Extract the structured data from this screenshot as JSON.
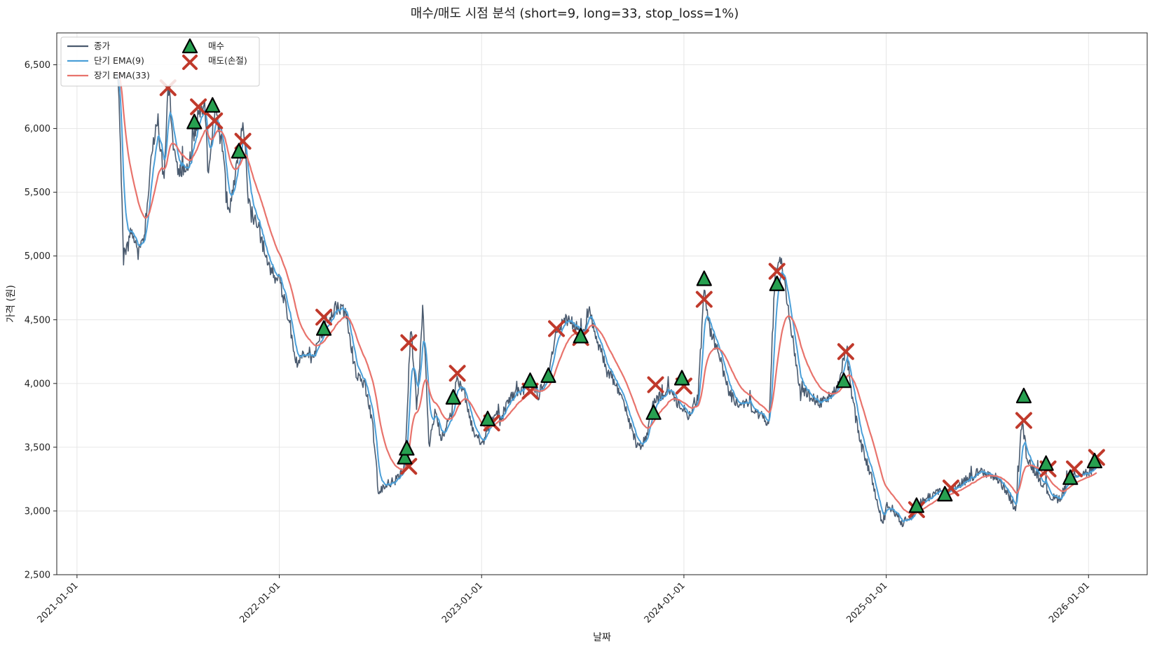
{
  "chart_data": {
    "type": "line",
    "title": "매수/매도 시점 분석 (short=9, long=33, stop_loss=1%)",
    "xlabel": "날짜",
    "ylabel": "가격 (원)",
    "ylim": [
      2500,
      6750
    ],
    "yticks": [
      2500,
      3000,
      3500,
      4000,
      4500,
      5000,
      5500,
      6000,
      6500
    ],
    "ytick_labels": [
      "2,500",
      "3,000",
      "3,500",
      "4,000",
      "4,500",
      "5,000",
      "5,500",
      "6,000",
      "6,500"
    ],
    "xlim": [
      2020.9,
      2026.29
    ],
    "xticks": [
      2021,
      2022,
      2023,
      2024,
      2025,
      2026
    ],
    "xtick_labels": [
      "2021-01-01",
      "2022-01-01",
      "2023-01-01",
      "2024-01-01",
      "2025-01-01",
      "2026-01-01"
    ],
    "grid": true,
    "legend_position": "top-left",
    "colors": {
      "close": "#4a5a6e",
      "ema_short": "#4b9fd8",
      "ema_long": "#e8736c",
      "buy_fill": "#27a050",
      "buy_edge": "#000000",
      "sell": "#c0392b",
      "grid": "#e6e6e6"
    },
    "legend": [
      {
        "key": "close",
        "label": "종가",
        "marker": "line"
      },
      {
        "key": "ema_short",
        "label": "단기 EMA(9)",
        "marker": "line"
      },
      {
        "key": "ema_long",
        "label": "장기 EMA(33)",
        "marker": "line"
      },
      {
        "key": "buy",
        "label": "매수",
        "marker": "triangle"
      },
      {
        "key": "sell",
        "label": "매도(손절)",
        "marker": "cross"
      }
    ],
    "anchors": [
      [
        2021.2,
        6400
      ],
      [
        2021.21,
        6100
      ],
      [
        2021.23,
        4950
      ],
      [
        2021.27,
        5200
      ],
      [
        2021.3,
        5000
      ],
      [
        2021.33,
        5100
      ],
      [
        2021.37,
        5850
      ],
      [
        2021.4,
        6050
      ],
      [
        2021.43,
        5600
      ],
      [
        2021.45,
        6380
      ],
      [
        2021.48,
        5800
      ],
      [
        2021.5,
        5650
      ],
      [
        2021.55,
        5700
      ],
      [
        2021.6,
        6100
      ],
      [
        2021.63,
        6200
      ],
      [
        2021.65,
        5600
      ],
      [
        2021.68,
        6150
      ],
      [
        2021.72,
        5850
      ],
      [
        2021.75,
        5300
      ],
      [
        2021.78,
        5600
      ],
      [
        2021.82,
        6050
      ],
      [
        2021.85,
        5400
      ],
      [
        2021.9,
        5200
      ],
      [
        2021.95,
        4900
      ],
      [
        2022.0,
        4800
      ],
      [
        2022.05,
        4500
      ],
      [
        2022.08,
        4150
      ],
      [
        2022.12,
        4250
      ],
      [
        2022.18,
        4250
      ],
      [
        2022.22,
        4450
      ],
      [
        2022.28,
        4600
      ],
      [
        2022.33,
        4550
      ],
      [
        2022.38,
        4050
      ],
      [
        2022.42,
        4000
      ],
      [
        2022.46,
        3700
      ],
      [
        2022.49,
        3150
      ],
      [
        2022.53,
        3200
      ],
      [
        2022.58,
        3250
      ],
      [
        2022.62,
        3350
      ],
      [
        2022.65,
        4450
      ],
      [
        2022.68,
        3800
      ],
      [
        2022.71,
        4600
      ],
      [
        2022.74,
        3500
      ],
      [
        2022.77,
        3800
      ],
      [
        2022.8,
        3550
      ],
      [
        2022.85,
        3750
      ],
      [
        2022.88,
        4050
      ],
      [
        2022.92,
        3900
      ],
      [
        2022.96,
        3600
      ],
      [
        2023.0,
        3500
      ],
      [
        2023.04,
        3700
      ],
      [
        2023.1,
        3750
      ],
      [
        2023.15,
        3900
      ],
      [
        2023.2,
        3950
      ],
      [
        2023.25,
        4000
      ],
      [
        2023.28,
        3900
      ],
      [
        2023.33,
        4100
      ],
      [
        2023.37,
        4400
      ],
      [
        2023.42,
        4500
      ],
      [
        2023.47,
        4450
      ],
      [
        2023.5,
        4350
      ],
      [
        2023.53,
        4600
      ],
      [
        2023.57,
        4350
      ],
      [
        2023.62,
        4100
      ],
      [
        2023.68,
        3950
      ],
      [
        2023.72,
        3750
      ],
      [
        2023.77,
        3500
      ],
      [
        2023.81,
        3550
      ],
      [
        2023.84,
        3800
      ],
      [
        2023.88,
        3900
      ],
      [
        2023.92,
        3950
      ],
      [
        2023.97,
        3850
      ],
      [
        2024.02,
        3750
      ],
      [
        2024.07,
        3900
      ],
      [
        2024.1,
        4750
      ],
      [
        2024.13,
        4400
      ],
      [
        2024.17,
        4250
      ],
      [
        2024.22,
        3950
      ],
      [
        2024.27,
        3800
      ],
      [
        2024.32,
        3850
      ],
      [
        2024.37,
        3750
      ],
      [
        2024.42,
        3700
      ],
      [
        2024.45,
        4850
      ],
      [
        2024.48,
        4950
      ],
      [
        2024.52,
        4550
      ],
      [
        2024.57,
        4000
      ],
      [
        2024.62,
        3900
      ],
      [
        2024.67,
        3850
      ],
      [
        2024.72,
        3900
      ],
      [
        2024.77,
        4000
      ],
      [
        2024.8,
        4300
      ],
      [
        2024.83,
        3900
      ],
      [
        2024.87,
        3550
      ],
      [
        2024.9,
        3400
      ],
      [
        2024.93,
        3250
      ],
      [
        2024.95,
        3100
      ],
      [
        2024.98,
        2900
      ],
      [
        2025.0,
        3050
      ],
      [
        2025.04,
        3000
      ],
      [
        2025.08,
        2900
      ],
      [
        2025.12,
        2950
      ],
      [
        2025.16,
        3050
      ],
      [
        2025.2,
        3100
      ],
      [
        2025.25,
        3150
      ],
      [
        2025.3,
        3150
      ],
      [
        2025.35,
        3200
      ],
      [
        2025.4,
        3250
      ],
      [
        2025.45,
        3300
      ],
      [
        2025.5,
        3300
      ],
      [
        2025.55,
        3250
      ],
      [
        2025.6,
        3150
      ],
      [
        2025.64,
        3000
      ],
      [
        2025.67,
        3700
      ],
      [
        2025.7,
        3400
      ],
      [
        2025.74,
        3300
      ],
      [
        2025.78,
        3200
      ],
      [
        2025.82,
        3100
      ],
      [
        2025.86,
        3100
      ],
      [
        2025.9,
        3250
      ],
      [
        2025.95,
        3300
      ],
      [
        2026.0,
        3300
      ],
      [
        2026.04,
        3350
      ]
    ],
    "buy_signals": [
      [
        2021.58,
        6050
      ],
      [
        2021.67,
        6180
      ],
      [
        2021.8,
        5820
      ],
      [
        2022.22,
        4430
      ],
      [
        2022.62,
        3420
      ],
      [
        2022.63,
        3490
      ],
      [
        2022.86,
        3890
      ],
      [
        2023.03,
        3720
      ],
      [
        2023.24,
        4020
      ],
      [
        2023.33,
        4060
      ],
      [
        2023.49,
        4370
      ],
      [
        2023.85,
        3770
      ],
      [
        2023.99,
        4040
      ],
      [
        2024.1,
        4820
      ],
      [
        2024.46,
        4780
      ],
      [
        2024.79,
        4020
      ],
      [
        2025.15,
        3040
      ],
      [
        2025.29,
        3130
      ],
      [
        2025.68,
        3900
      ],
      [
        2025.79,
        3370
      ],
      [
        2025.91,
        3260
      ],
      [
        2026.03,
        3390
      ]
    ],
    "sell_signals": [
      [
        2021.45,
        6320
      ],
      [
        2021.6,
        6170
      ],
      [
        2021.68,
        6060
      ],
      [
        2021.82,
        5900
      ],
      [
        2022.22,
        4520
      ],
      [
        2022.64,
        4320
      ],
      [
        2022.64,
        3350
      ],
      [
        2022.88,
        4080
      ],
      [
        2023.05,
        3690
      ],
      [
        2023.24,
        3940
      ],
      [
        2023.37,
        4430
      ],
      [
        2023.49,
        4360
      ],
      [
        2023.86,
        3990
      ],
      [
        2024.0,
        3980
      ],
      [
        2024.1,
        4660
      ],
      [
        2024.46,
        4880
      ],
      [
        2024.8,
        4250
      ],
      [
        2025.15,
        3010
      ],
      [
        2025.32,
        3180
      ],
      [
        2025.68,
        3710
      ],
      [
        2025.8,
        3330
      ],
      [
        2025.93,
        3330
      ],
      [
        2026.04,
        3420
      ]
    ]
  }
}
